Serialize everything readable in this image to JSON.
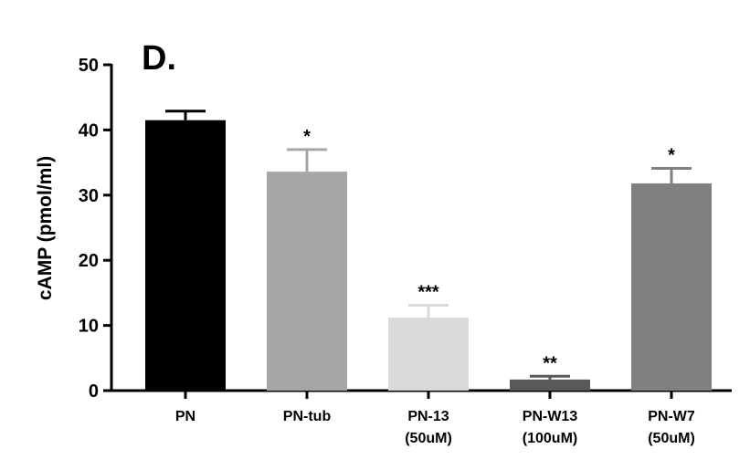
{
  "chart_data": {
    "type": "bar",
    "panel_label": "D.",
    "ylabel": "cAMP (pmol/ml)",
    "ylim": [
      0,
      50
    ],
    "yticks": [
      0,
      10,
      20,
      30,
      40,
      50
    ],
    "categories": [
      [
        "PN"
      ],
      [
        "PN-tub"
      ],
      [
        "PN-13",
        "(50uM)"
      ],
      [
        "PN-W13",
        "(100uM)"
      ],
      [
        "PN-W7",
        "(50uM)"
      ]
    ],
    "values": [
      41.5,
      33.6,
      11.2,
      1.7,
      31.8
    ],
    "errors": [
      1.4,
      3.4,
      1.9,
      0.5,
      2.3
    ],
    "significance": [
      "",
      "*",
      "***",
      "**",
      "*"
    ],
    "colors": [
      "#000000",
      "#a6a6a6",
      "#d9d9d9",
      "#595959",
      "#808080"
    ]
  }
}
